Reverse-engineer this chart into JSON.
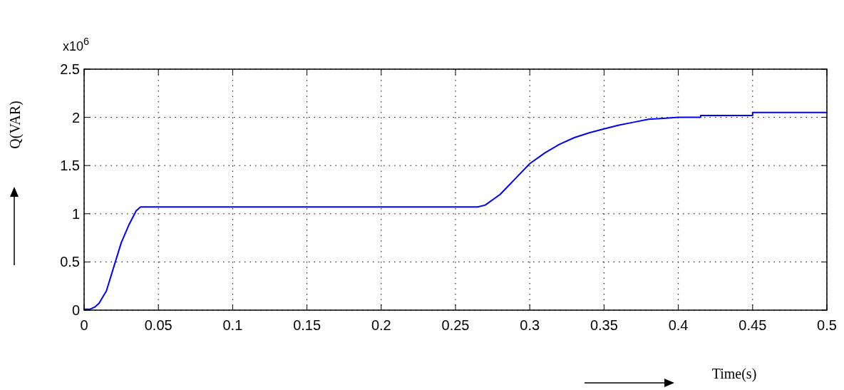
{
  "chart_data": {
    "type": "line",
    "xlabel": "Time(s)",
    "ylabel": "Q(VAR)",
    "annotations": [
      "x10$^{6}$"
    ],
    "xlim": [
      0,
      0.5
    ],
    "xticks": [
      0,
      0.05,
      0.1,
      0.15,
      0.2,
      0.25,
      0.3,
      0.35,
      0.4,
      0.45,
      0.5
    ],
    "ylim": [
      0,
      2.5
    ],
    "yticks": [
      0,
      0.5,
      1,
      1.5,
      2,
      2.5
    ],
    "grid": true,
    "marker": "none",
    "line_style": "solid",
    "series": [
      {
        "color": "#0000ff",
        "x": [
          0,
          0.004,
          0.007,
          0.01,
          0.015,
          0.02,
          0.025,
          0.03,
          0.035,
          0.038,
          0.265,
          0.27,
          0.28,
          0.29,
          0.3,
          0.31,
          0.32,
          0.33,
          0.34,
          0.35,
          0.36,
          0.37,
          0.38,
          0.39,
          0.4,
          0.415,
          0.415,
          0.45,
          0.45,
          0.5
        ],
        "values": [
          0.01,
          0.01,
          0.03,
          0.07,
          0.2,
          0.45,
          0.7,
          0.88,
          1.03,
          1.07,
          1.07,
          1.09,
          1.2,
          1.36,
          1.52,
          1.63,
          1.72,
          1.79,
          1.84,
          1.88,
          1.92,
          1.95,
          1.98,
          1.99,
          2.0,
          2.0,
          2.02,
          2.02,
          2.05,
          2.05
        ]
      }
    ]
  }
}
